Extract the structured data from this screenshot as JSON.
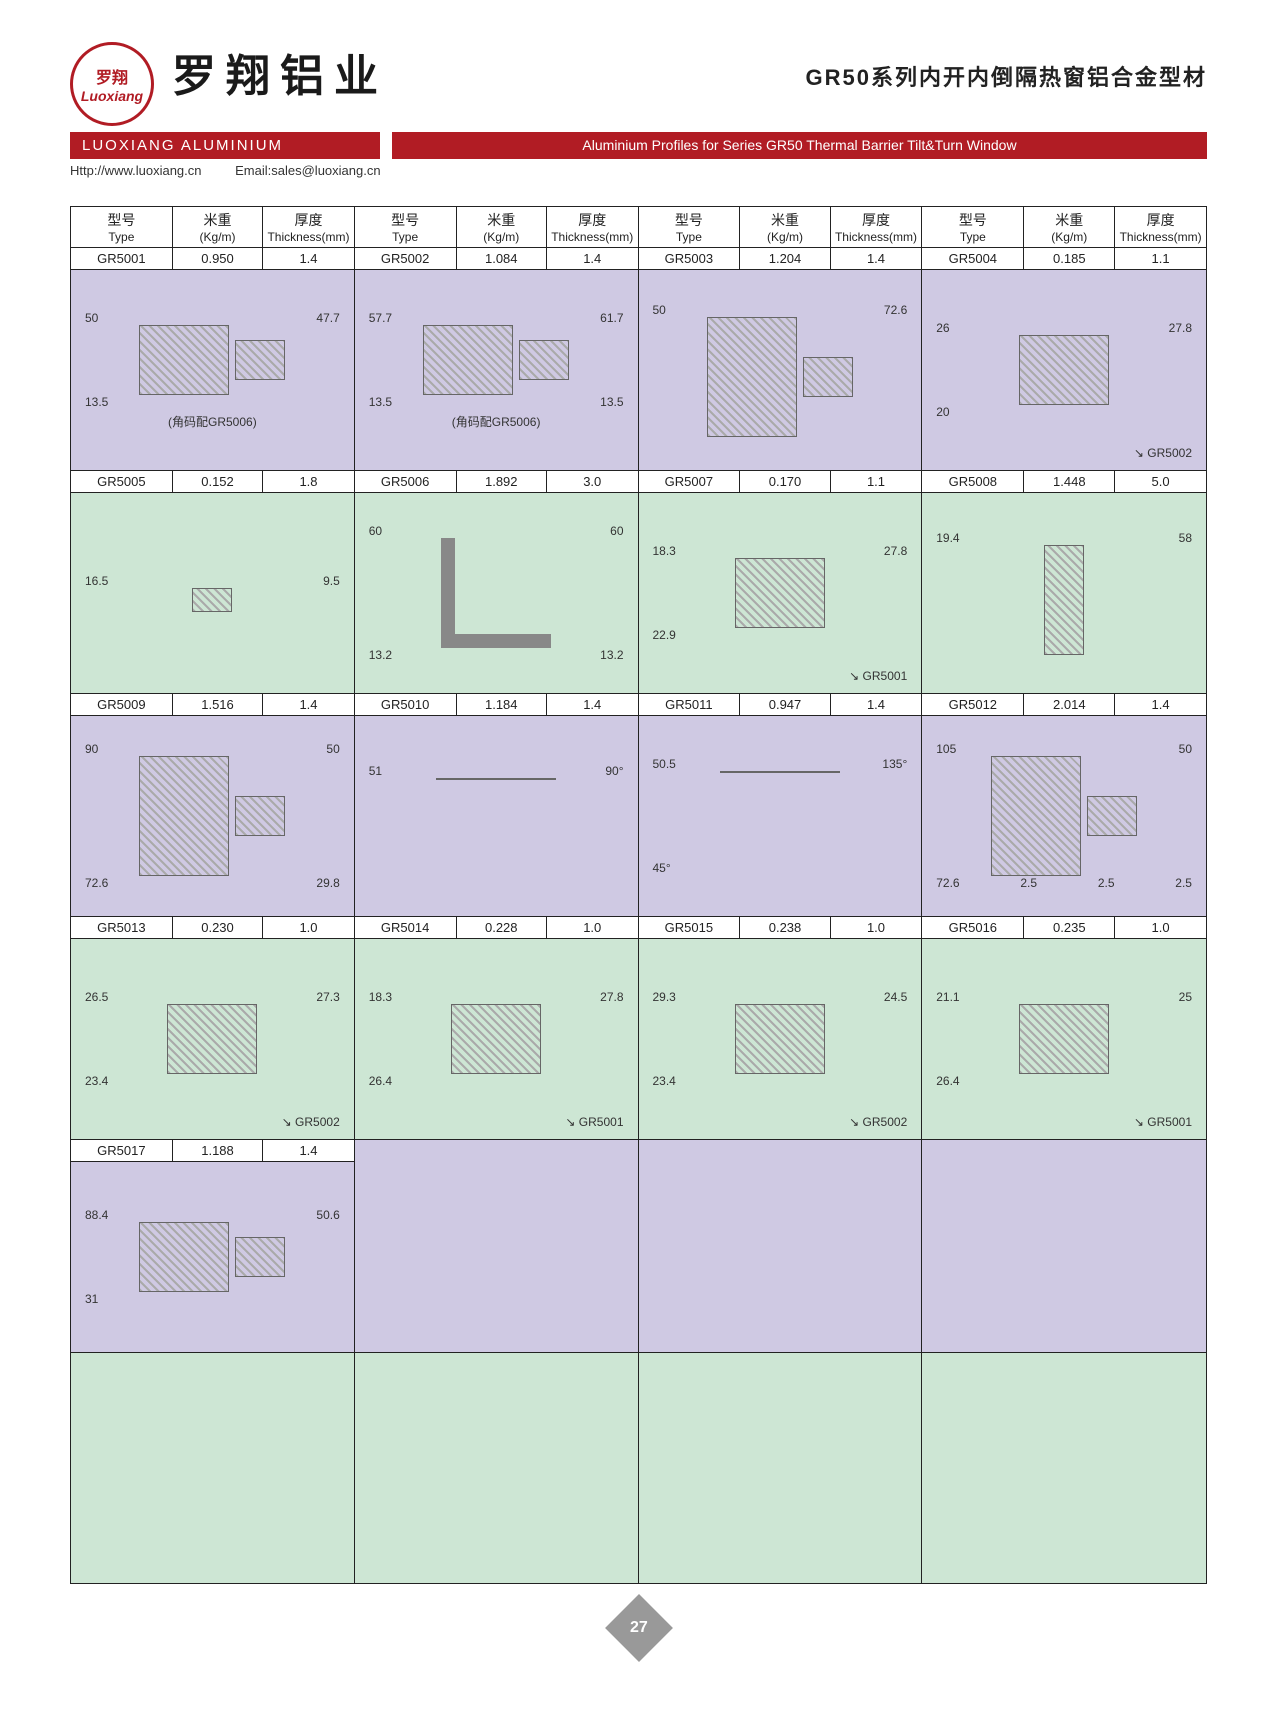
{
  "header": {
    "logo_cn": "罗翔",
    "logo_en": "Luoxiang",
    "brand_cn": "罗翔铝业",
    "brand_en": "LUOXIANG ALUMINIUM",
    "title_cn": "GR50系列内开内倒隔热窗铝合金型材",
    "title_en": "Aluminium Profiles for Series GR50 Thermal Barrier Tilt&Turn Window",
    "url_label": "Http://www.luoxiang.cn",
    "email_label": "Email:sales@luoxiang.cn"
  },
  "colors": {
    "brand_red": "#b11c24",
    "row_purple": "#cfc9e3",
    "row_green": "#cde6d4",
    "border": "#222222"
  },
  "column_labels": {
    "type_cn": "型号",
    "type_en": "Type",
    "weight_cn": "米重",
    "weight_en": "(Kg/m)",
    "thick_cn": "厚度",
    "thick_en": "Thickness(mm)"
  },
  "rows": [
    {
      "bg": "purple",
      "items": [
        {
          "type": "GR5001",
          "weight": "0.950",
          "thick": "1.4",
          "dims": [
            "50",
            "47.7",
            "13.5"
          ],
          "note": "(角码配GR5006)",
          "ref": ""
        },
        {
          "type": "GR5002",
          "weight": "1.084",
          "thick": "1.4",
          "dims": [
            "57.7",
            "61.7",
            "13.5",
            "13.5"
          ],
          "note": "(角码配GR5006)",
          "ref": ""
        },
        {
          "type": "GR5003",
          "weight": "1.204",
          "thick": "1.4",
          "dims": [
            "50",
            "72.6"
          ],
          "note": "",
          "ref": ""
        },
        {
          "type": "GR5004",
          "weight": "0.185",
          "thick": "1.1",
          "dims": [
            "26",
            "27.8",
            "20"
          ],
          "note": "",
          "ref": "GR5002"
        }
      ]
    },
    {
      "bg": "green",
      "items": [
        {
          "type": "GR5005",
          "weight": "0.152",
          "thick": "1.8",
          "dims": [
            "16.5",
            "9.5"
          ],
          "note": "",
          "ref": ""
        },
        {
          "type": "GR5006",
          "weight": "1.892",
          "thick": "3.0",
          "dims": [
            "60",
            "60",
            "13.2",
            "13.2"
          ],
          "note": "",
          "ref": ""
        },
        {
          "type": "GR5007",
          "weight": "0.170",
          "thick": "1.1",
          "dims": [
            "18.3",
            "27.8",
            "22.9"
          ],
          "note": "",
          "ref": "GR5001"
        },
        {
          "type": "GR5008",
          "weight": "1.448",
          "thick": "5.0",
          "dims": [
            "19.4",
            "58"
          ],
          "note": "",
          "ref": ""
        }
      ]
    },
    {
      "bg": "purple",
      "items": [
        {
          "type": "GR5009",
          "weight": "1.516",
          "thick": "1.4",
          "dims": [
            "90",
            "50",
            "72.6",
            "29.8"
          ],
          "note": "",
          "ref": ""
        },
        {
          "type": "GR5010",
          "weight": "1.184",
          "thick": "1.4",
          "dims": [
            "51",
            "90°"
          ],
          "note": "",
          "ref": ""
        },
        {
          "type": "GR5011",
          "weight": "0.947",
          "thick": "1.4",
          "dims": [
            "50.5",
            "135°",
            "45°"
          ],
          "note": "",
          "ref": ""
        },
        {
          "type": "GR5012",
          "weight": "2.014",
          "thick": "1.4",
          "dims": [
            "105",
            "50",
            "72.6",
            "2.5",
            "2.5",
            "2.5"
          ],
          "note": "",
          "ref": ""
        }
      ]
    },
    {
      "bg": "green",
      "items": [
        {
          "type": "GR5013",
          "weight": "0.230",
          "thick": "1.0",
          "dims": [
            "26.5",
            "27.3",
            "23.4"
          ],
          "note": "",
          "ref": "GR5002"
        },
        {
          "type": "GR5014",
          "weight": "0.228",
          "thick": "1.0",
          "dims": [
            "18.3",
            "27.8",
            "26.4"
          ],
          "note": "",
          "ref": "GR5001"
        },
        {
          "type": "GR5015",
          "weight": "0.238",
          "thick": "1.0",
          "dims": [
            "29.3",
            "24.5",
            "23.4"
          ],
          "note": "",
          "ref": "GR5002"
        },
        {
          "type": "GR5016",
          "weight": "0.235",
          "thick": "1.0",
          "dims": [
            "21.1",
            "25",
            "26.4"
          ],
          "note": "",
          "ref": "GR5001"
        }
      ]
    },
    {
      "bg": "purple",
      "items": [
        {
          "type": "GR5017",
          "weight": "1.188",
          "thick": "1.4",
          "dims": [
            "88.4",
            "50.6",
            "31"
          ],
          "note": "",
          "ref": ""
        },
        {
          "type": "",
          "weight": "",
          "thick": "",
          "dims": [],
          "note": "",
          "ref": ""
        },
        {
          "type": "",
          "weight": "",
          "thick": "",
          "dims": [],
          "note": "",
          "ref": ""
        },
        {
          "type": "",
          "weight": "",
          "thick": "",
          "dims": [],
          "note": "",
          "ref": ""
        }
      ]
    },
    {
      "bg": "green",
      "items": [
        {
          "type": "",
          "weight": "",
          "thick": "",
          "dims": [],
          "note": "",
          "ref": ""
        },
        {
          "type": "",
          "weight": "",
          "thick": "",
          "dims": [],
          "note": "",
          "ref": ""
        },
        {
          "type": "",
          "weight": "",
          "thick": "",
          "dims": [],
          "note": "",
          "ref": ""
        },
        {
          "type": "",
          "weight": "",
          "thick": "",
          "dims": [],
          "note": "",
          "ref": ""
        }
      ]
    }
  ],
  "page_number": "27"
}
